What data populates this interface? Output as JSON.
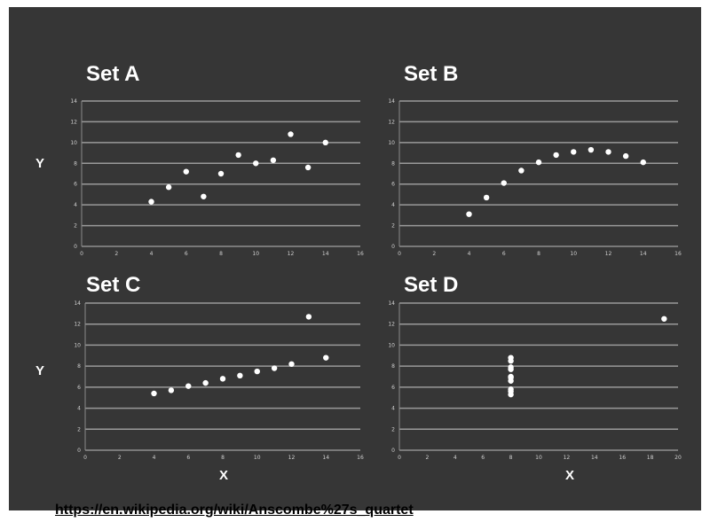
{
  "source_link": "https://en.wikipedia.org/wiki/Anscombe%27s_quartet",
  "colors": {
    "background": "#363636",
    "gridline": "#9a9a9a",
    "axis": "#8a8a8a",
    "marker": "#ffffff",
    "text": "#ffffff"
  },
  "chart_data": [
    {
      "type": "scatter",
      "title": "Set A",
      "xlabel": "",
      "ylabel": "Y",
      "xlim": [
        0,
        16
      ],
      "ylim": [
        0,
        14
      ],
      "xticks": [
        0,
        2,
        4,
        6,
        8,
        10,
        12,
        14,
        16
      ],
      "yticks": [
        0,
        2,
        4,
        6,
        8,
        10,
        12,
        14
      ],
      "grid": true,
      "points": [
        [
          4,
          4.3
        ],
        [
          5,
          5.7
        ],
        [
          6,
          7.2
        ],
        [
          7,
          4.8
        ],
        [
          8,
          7.0
        ],
        [
          9,
          8.8
        ],
        [
          10,
          8.0
        ],
        [
          11,
          8.3
        ],
        [
          12,
          10.8
        ],
        [
          13,
          7.6
        ],
        [
          14,
          10.0
        ]
      ]
    },
    {
      "type": "scatter",
      "title": "Set B",
      "xlabel": "",
      "ylabel": "",
      "xlim": [
        0,
        16
      ],
      "ylim": [
        0,
        14
      ],
      "xticks": [
        0,
        2,
        4,
        6,
        8,
        10,
        12,
        14,
        16
      ],
      "yticks": [
        0,
        2,
        4,
        6,
        8,
        10,
        12,
        14
      ],
      "grid": true,
      "points": [
        [
          4,
          3.1
        ],
        [
          5,
          4.7
        ],
        [
          6,
          6.1
        ],
        [
          7,
          7.3
        ],
        [
          8,
          8.1
        ],
        [
          9,
          8.8
        ],
        [
          10,
          9.1
        ],
        [
          11,
          9.3
        ],
        [
          12,
          9.1
        ],
        [
          13,
          8.7
        ],
        [
          14,
          8.1
        ]
      ]
    },
    {
      "type": "scatter",
      "title": "Set C",
      "xlabel": "X",
      "ylabel": "Y",
      "xlim": [
        0,
        16
      ],
      "ylim": [
        0,
        14
      ],
      "xticks": [
        0,
        2,
        4,
        6,
        8,
        10,
        12,
        14,
        16
      ],
      "yticks": [
        0,
        2,
        4,
        6,
        8,
        10,
        12,
        14
      ],
      "grid": true,
      "points": [
        [
          4,
          5.4
        ],
        [
          5,
          5.7
        ],
        [
          6,
          6.1
        ],
        [
          7,
          6.4
        ],
        [
          8,
          6.8
        ],
        [
          9,
          7.1
        ],
        [
          10,
          7.5
        ],
        [
          11,
          7.8
        ],
        [
          12,
          8.2
        ],
        [
          13,
          12.7
        ],
        [
          14,
          8.8
        ]
      ]
    },
    {
      "type": "scatter",
      "title": "Set D",
      "xlabel": "X",
      "ylabel": "",
      "xlim": [
        0,
        20
      ],
      "ylim": [
        0,
        14
      ],
      "xticks": [
        0,
        2,
        4,
        6,
        8,
        10,
        12,
        14,
        16,
        18,
        20
      ],
      "yticks": [
        0,
        2,
        4,
        6,
        8,
        10,
        12,
        14
      ],
      "grid": true,
      "points": [
        [
          8,
          5.3
        ],
        [
          8,
          5.8
        ],
        [
          8,
          6.6
        ],
        [
          8,
          7.0
        ],
        [
          8,
          7.7
        ],
        [
          8,
          8.5
        ],
        [
          8,
          8.8
        ],
        [
          8,
          7.9
        ],
        [
          8,
          5.6
        ],
        [
          8,
          6.9
        ],
        [
          19,
          12.5
        ]
      ]
    }
  ]
}
